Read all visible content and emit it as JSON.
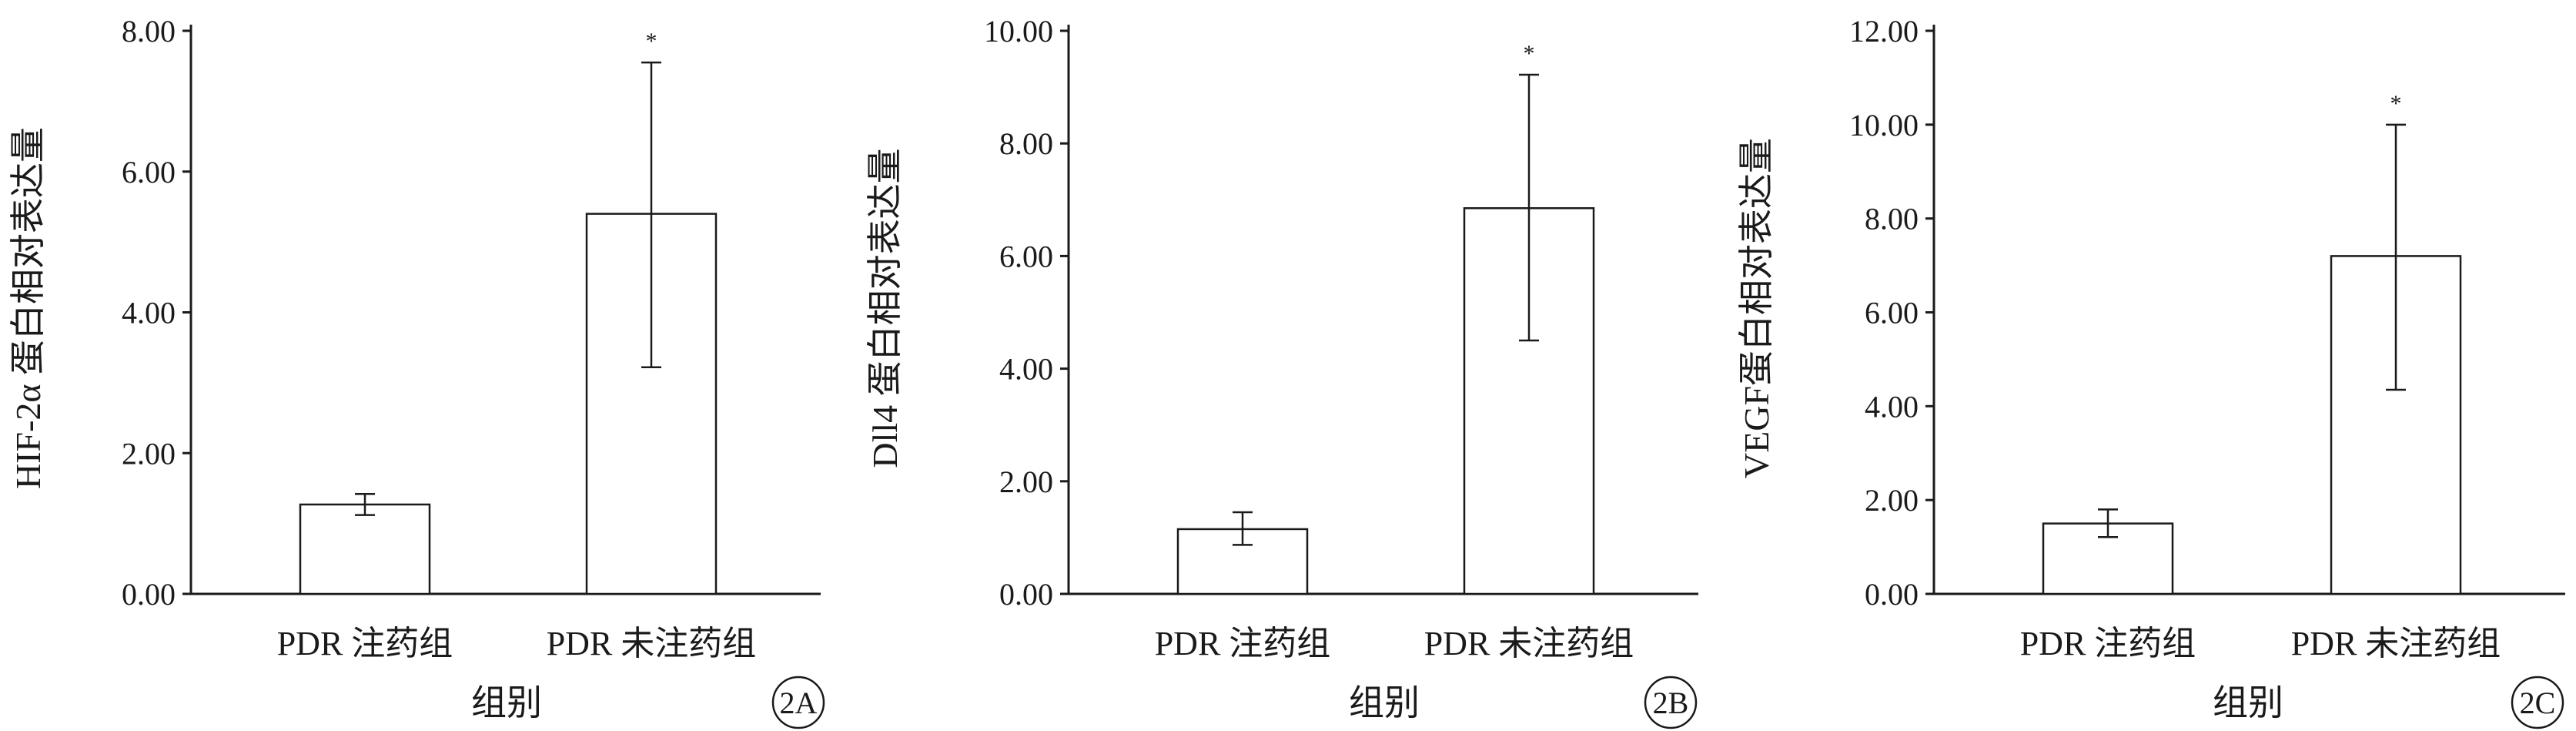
{
  "chart_data": [
    {
      "type": "bar",
      "categories": [
        "PDR 注药组",
        "PDR 未注药组"
      ],
      "values": [
        1.27,
        5.4
      ],
      "error_low": [
        1.12,
        3.22
      ],
      "error_high": [
        1.42,
        7.55
      ],
      "significance": [
        "",
        "*"
      ],
      "xlabel": "组别",
      "ylabel": "HIF-2α 蛋白相对表达量",
      "ylim": [
        0,
        8
      ],
      "yticks": [
        0,
        2,
        4,
        6,
        8
      ],
      "ytick_labels": [
        "0.00",
        "2.00",
        "4.00",
        "6.00",
        "8.00"
      ],
      "panel_label": "2A",
      "grid": false
    },
    {
      "type": "bar",
      "categories": [
        "PDR 注药组",
        "PDR 未注药组"
      ],
      "values": [
        1.15,
        6.85
      ],
      "error_low": [
        0.87,
        4.5
      ],
      "error_high": [
        1.45,
        9.22
      ],
      "significance": [
        "",
        "*"
      ],
      "xlabel": "组别",
      "ylabel": "Dll4 蛋白相对表达量",
      "ylim": [
        0,
        10
      ],
      "yticks": [
        0,
        2,
        4,
        6,
        8,
        10
      ],
      "ytick_labels": [
        "0.00",
        "2.00",
        "4.00",
        "6.00",
        "8.00",
        "10.00"
      ],
      "panel_label": "2B",
      "grid": false
    },
    {
      "type": "bar",
      "categories": [
        "PDR 注药组",
        "PDR 未注药组"
      ],
      "values": [
        1.5,
        7.2
      ],
      "error_low": [
        1.21,
        4.35
      ],
      "error_high": [
        1.8,
        10.0
      ],
      "significance": [
        "",
        "*"
      ],
      "xlabel": "组别",
      "ylabel": "VEGF蛋白相对表达量",
      "ylim": [
        0,
        12
      ],
      "yticks": [
        0,
        2,
        4,
        6,
        8,
        10,
        12
      ],
      "ytick_labels": [
        "0.00",
        "2.00",
        "4.00",
        "6.00",
        "8.00",
        "10.00",
        "12.00"
      ],
      "panel_label": "2C",
      "grid": false
    }
  ]
}
